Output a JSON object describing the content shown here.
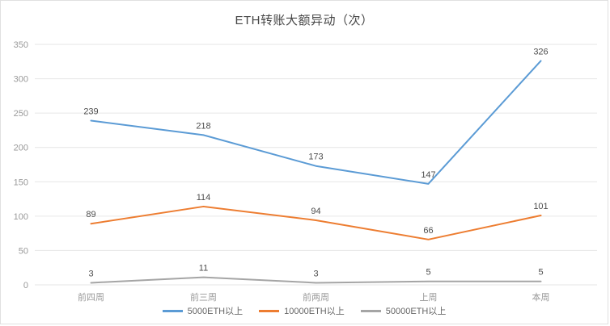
{
  "chart_data": {
    "type": "line",
    "title": "ETH转账大额异动（次）",
    "categories": [
      "前四周",
      "前三周",
      "前两周",
      "上周",
      "本周"
    ],
    "series": [
      {
        "name": "5000ETH以上",
        "color": "#5b9bd5",
        "values": [
          239,
          218,
          173,
          147,
          326
        ]
      },
      {
        "name": "10000ETH以上",
        "color": "#ed7d31",
        "values": [
          89,
          114,
          94,
          66,
          101
        ]
      },
      {
        "name": "50000ETH以上",
        "color": "#a5a5a5",
        "values": [
          3,
          11,
          3,
          5,
          5
        ]
      }
    ],
    "ylim": [
      0,
      350
    ],
    "yticks": [
      0,
      50,
      100,
      150,
      200,
      250,
      300,
      350
    ],
    "grid": true,
    "legend_position": "bottom"
  },
  "style": {
    "grid_color": "#e6e6e6",
    "axis_label_color": "#999999",
    "data_label_color": "#4d4d4d",
    "title_color": "#464646",
    "background": "#ffffff"
  }
}
